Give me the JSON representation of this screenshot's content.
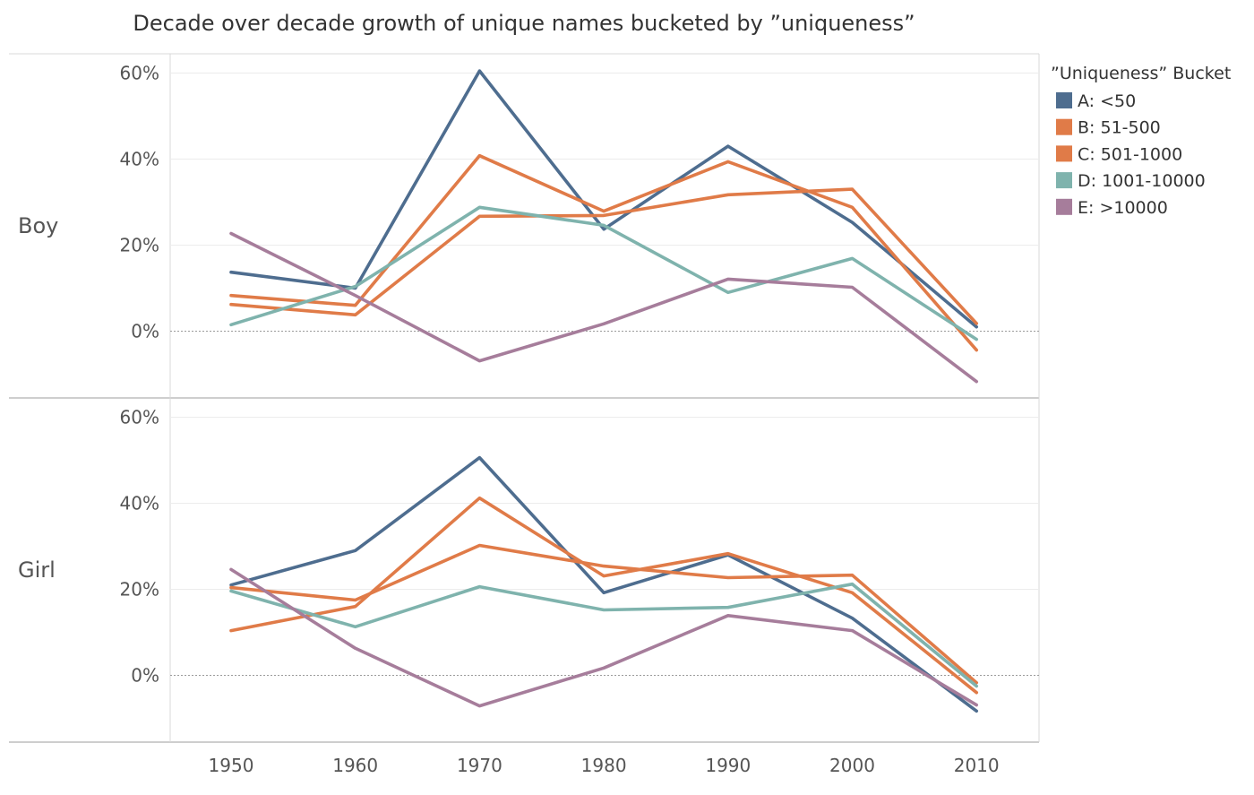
{
  "chart_data": {
    "type": "line",
    "title": "Decade over decade growth of unique names bucketed by ”uniqueness”",
    "x": [
      "1950",
      "1960",
      "1970",
      "1980",
      "1990",
      "2000",
      "2010"
    ],
    "y_ticks": [
      "0%",
      "20%",
      "40%",
      "60%"
    ],
    "ylim": [
      -13,
      63
    ],
    "grid": true,
    "zero_line": "dotted",
    "legend": {
      "title": "”Uniqueness” Bucket",
      "placement": "right",
      "entries": [
        {
          "label": "A: <50",
          "color": "#4e6d8f"
        },
        {
          "label": "B: 51-500",
          "color": "#e07b48"
        },
        {
          "label": "C: 501-1000",
          "color": "#e07b48"
        },
        {
          "label": "D: 1001-10000",
          "color": "#7fb3ad"
        },
        {
          "label": "E: >10000",
          "color": "#a67d9b"
        }
      ]
    },
    "panels": [
      {
        "label": "Boy",
        "series": [
          {
            "name": "A: <50",
            "color": "#4e6d8f",
            "values": [
              13.7,
              10.0,
              60.5,
              23.7,
              43.0,
              25.3,
              1.0
            ]
          },
          {
            "name": "B: 51-500",
            "color": "#e07b48",
            "values": [
              6.2,
              3.8,
              26.7,
              26.9,
              31.7,
              33.0,
              1.8
            ]
          },
          {
            "name": "C: 501-1000",
            "color": "#e07b48",
            "values": [
              8.3,
              6.0,
              40.8,
              27.9,
              39.4,
              28.8,
              -4.4
            ]
          },
          {
            "name": "D: 1001-10000",
            "color": "#7fb3ad",
            "values": [
              1.5,
              10.4,
              28.8,
              24.6,
              9.0,
              16.9,
              -1.9
            ]
          },
          {
            "name": "E: >10000",
            "color": "#a67d9b",
            "values": [
              22.7,
              8.3,
              -6.9,
              1.7,
              12.1,
              10.2,
              -11.7
            ]
          }
        ]
      },
      {
        "label": "Girl",
        "series": [
          {
            "name": "A: <50",
            "color": "#4e6d8f",
            "values": [
              21.0,
              29.0,
              50.6,
              19.2,
              28.0,
              13.3,
              -8.3
            ]
          },
          {
            "name": "B: 51-500",
            "color": "#e07b48",
            "values": [
              20.4,
              17.5,
              30.2,
              25.4,
              22.7,
              23.3,
              -1.7
            ]
          },
          {
            "name": "C: 501-1000",
            "color": "#e07b48",
            "values": [
              10.4,
              16.0,
              41.2,
              23.1,
              28.3,
              19.2,
              -4.0
            ]
          },
          {
            "name": "D: 1001-10000",
            "color": "#7fb3ad",
            "values": [
              19.6,
              11.3,
              20.6,
              15.2,
              15.8,
              21.2,
              -2.5
            ]
          },
          {
            "name": "E: >10000",
            "color": "#a67d9b",
            "values": [
              24.6,
              6.3,
              -7.1,
              1.7,
              13.9,
              10.4,
              -6.9
            ]
          }
        ]
      }
    ]
  }
}
